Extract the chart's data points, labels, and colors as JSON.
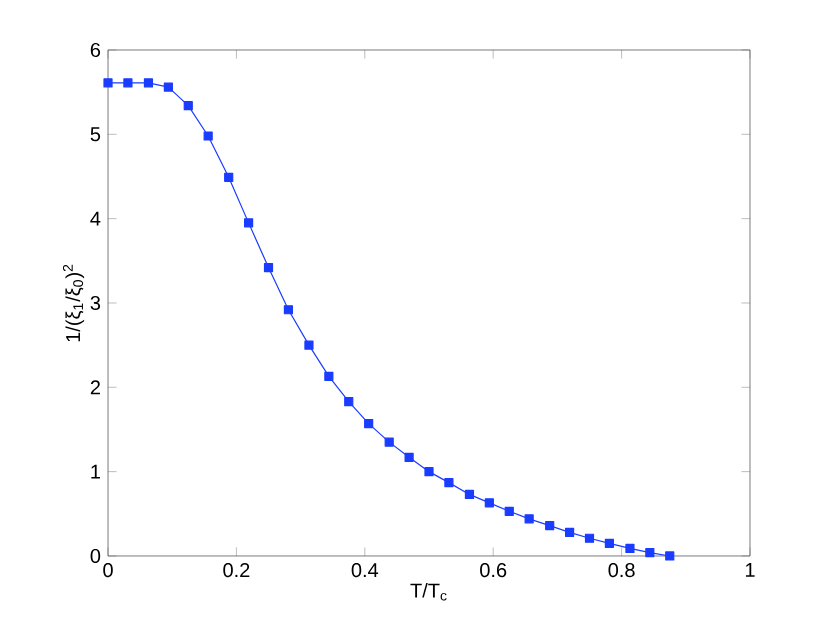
{
  "chart_data": {
    "type": "line",
    "xlabel": "T/T$_{c}$",
    "ylabel": "1/(ξ$_{1}$/ξ$_{0}$)$^{2}$",
    "x": [
      0,
      0.031,
      0.063,
      0.094,
      0.125,
      0.156,
      0.188,
      0.219,
      0.25,
      0.281,
      0.313,
      0.344,
      0.375,
      0.406,
      0.438,
      0.469,
      0.5,
      0.531,
      0.563,
      0.594,
      0.625,
      0.656,
      0.688,
      0.719,
      0.75,
      0.781,
      0.813,
      0.844,
      0.875
    ],
    "series": [
      {
        "color": "#1a3cff",
        "values": [
          5.61,
          5.61,
          5.61,
          5.56,
          5.34,
          4.98,
          4.49,
          3.95,
          3.42,
          2.92,
          2.5,
          2.13,
          1.83,
          1.57,
          1.35,
          1.17,
          1.0,
          0.87,
          0.73,
          0.63,
          0.53,
          0.44,
          0.36,
          0.28,
          0.21,
          0.15,
          0.09,
          0.04,
          0.0
        ]
      }
    ],
    "xlim": [
      0,
      1
    ],
    "ylim": [
      0,
      6
    ],
    "xticks": [
      0,
      0.2,
      0.4,
      0.6,
      0.8,
      1
    ],
    "yticks": [
      0,
      1,
      2,
      3,
      4,
      5,
      6
    ],
    "marker": "square",
    "line_style": "solid",
    "grid": false
  }
}
